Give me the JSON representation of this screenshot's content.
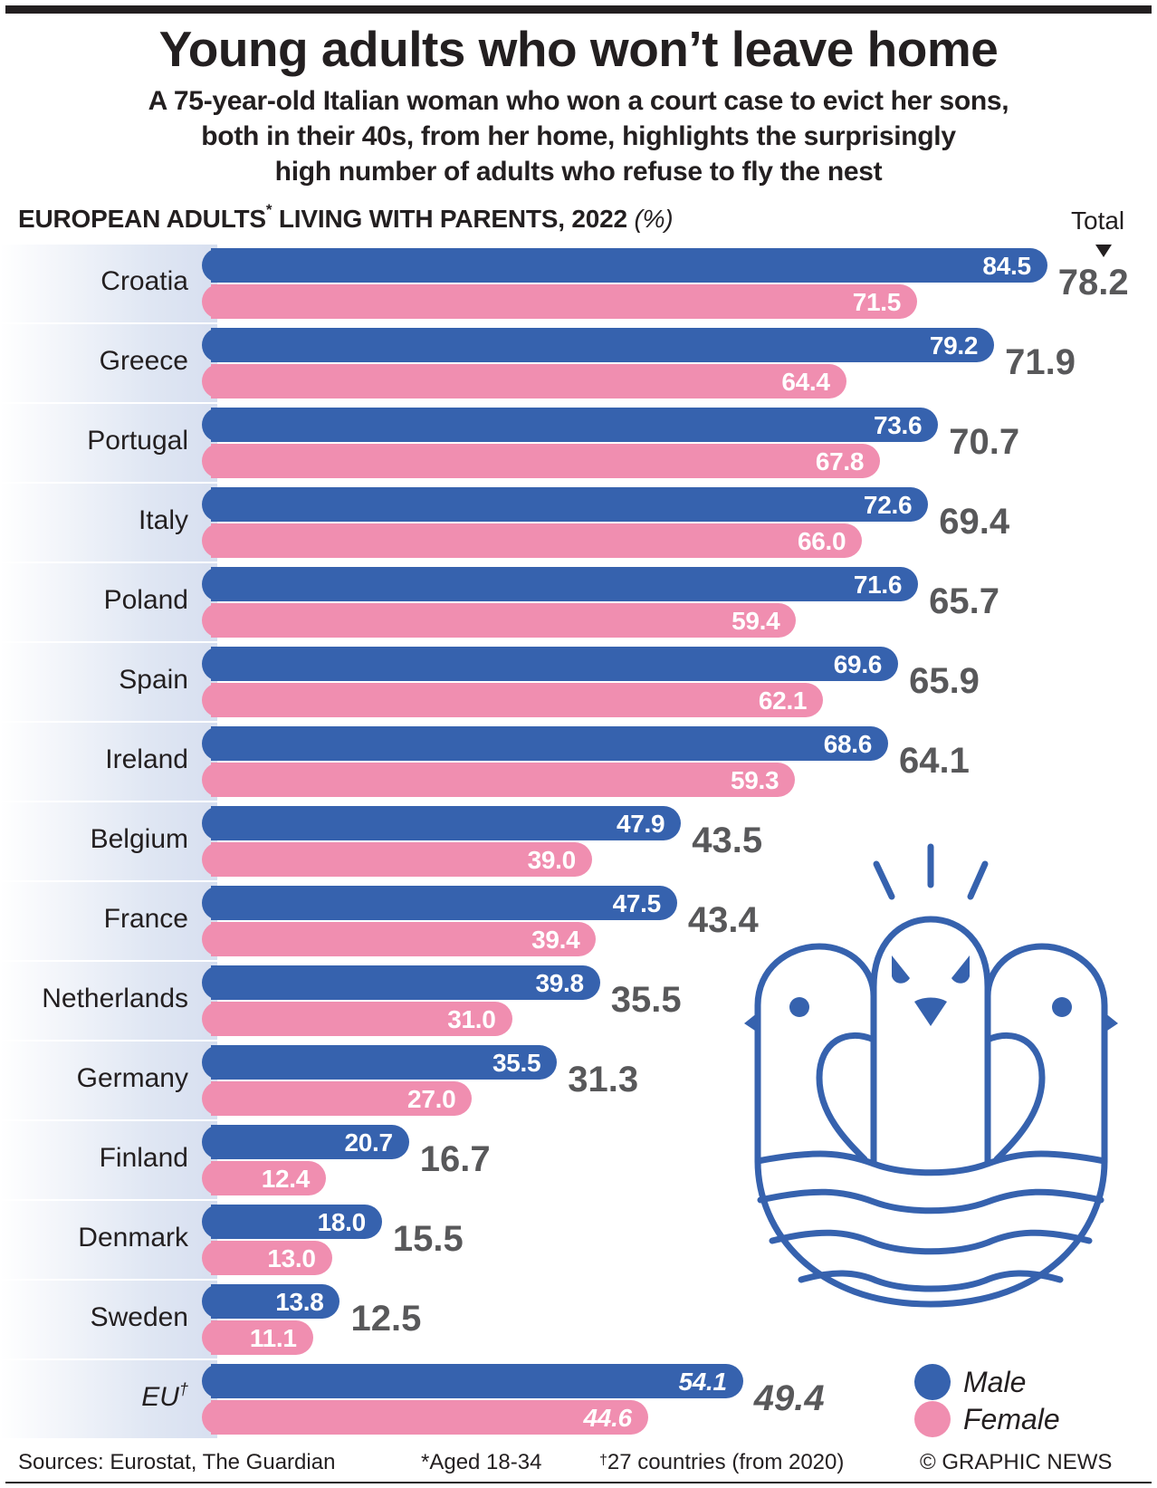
{
  "header": {
    "title": "Young adults who won’t leave home",
    "subtitle_lines": [
      "A 75-year-old Italian woman who won a court case to evict her sons,",
      "both in their 40s, from her home, highlights the surprisingly",
      "high number of adults who refuse to fly the nest"
    ]
  },
  "chart_heading": {
    "text": "EUROPEAN ADULTS",
    "marker": "*",
    "text2": " LIVING WITH PARENTS, 2022 ",
    "unit": "(%)"
  },
  "total_heading": "Total",
  "colors": {
    "male": "#3662ae",
    "female": "#f08eb0",
    "total_text": "#58585a"
  },
  "legend": {
    "male": "Male",
    "female": "Female"
  },
  "footer": {
    "sources": "Sources: Eurostat, The Guardian",
    "note_age": "*Aged 18-34",
    "note_eu_marker": "†",
    "note_eu": "27 countries (from 2020)",
    "credit": "© GRAPHIC NEWS"
  },
  "chart_data": {
    "type": "bar",
    "orientation": "horizontal",
    "title": "EUROPEAN ADULTS* LIVING WITH PARENTS, 2022 (%)",
    "xlabel": "",
    "ylabel": "",
    "xlim": [
      0,
      100
    ],
    "grid": false,
    "legend_position": "bottom-right",
    "categories": [
      "Croatia",
      "Greece",
      "Portugal",
      "Italy",
      "Poland",
      "Spain",
      "Ireland",
      "Belgium",
      "France",
      "Netherlands",
      "Germany",
      "Finland",
      "Denmark",
      "Sweden",
      "EU†"
    ],
    "series": [
      {
        "name": "Male",
        "values": [
          84.5,
          79.2,
          73.6,
          72.6,
          71.6,
          69.6,
          68.6,
          47.9,
          47.5,
          39.8,
          35.5,
          20.7,
          18.0,
          13.8,
          54.1
        ]
      },
      {
        "name": "Female",
        "values": [
          71.5,
          64.4,
          67.8,
          66.0,
          59.4,
          62.1,
          59.3,
          39.0,
          39.4,
          31.0,
          27.0,
          12.4,
          13.0,
          11.1,
          44.6
        ]
      },
      {
        "name": "Total",
        "values": [
          78.2,
          71.9,
          70.7,
          69.4,
          65.7,
          65.9,
          64.1,
          43.5,
          43.4,
          35.5,
          31.3,
          16.7,
          15.5,
          12.5,
          49.4
        ]
      }
    ]
  }
}
